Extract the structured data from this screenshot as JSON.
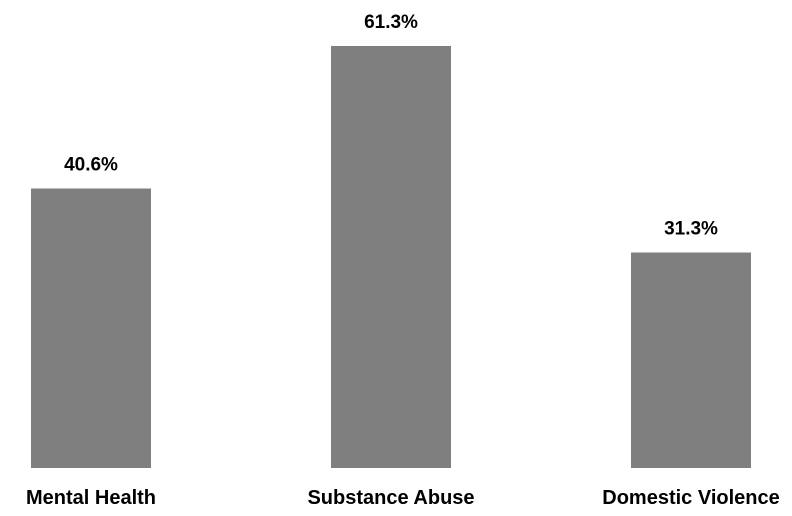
{
  "chart_data": {
    "type": "bar",
    "title": "",
    "xlabel": "",
    "ylabel": "",
    "categories": [
      "Mental Health",
      "Substance Abuse",
      "Domestic Violence"
    ],
    "values": [
      40.6,
      61.3,
      31.3
    ],
    "value_labels": [
      "40.6%",
      "61.3%",
      "31.3%"
    ],
    "ylim": [
      0,
      100
    ],
    "grid": false,
    "legend": "none",
    "bar_color": "#7f7f7f"
  }
}
